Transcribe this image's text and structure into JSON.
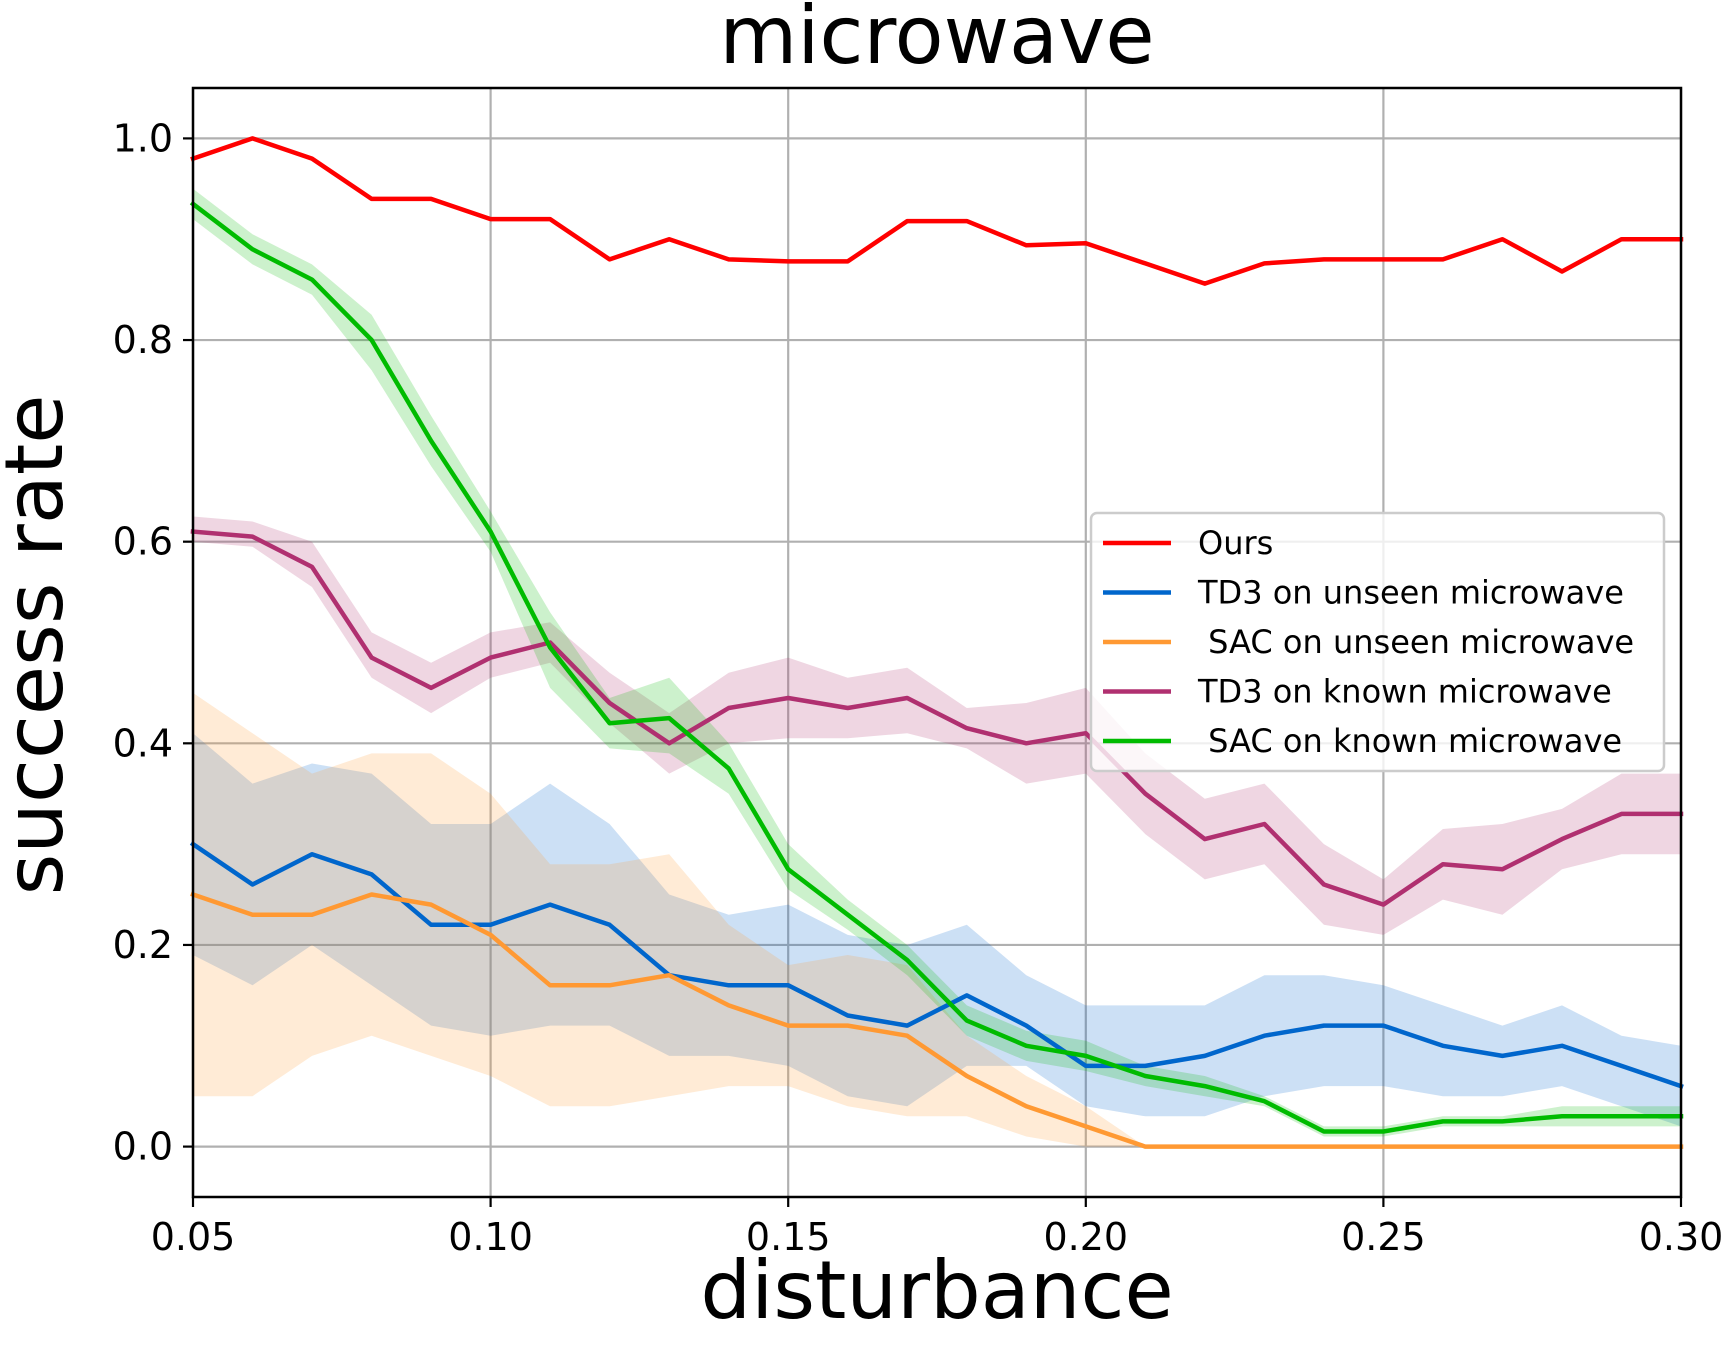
{
  "chart_data": {
    "type": "line",
    "title": "microwave",
    "xlabel": "disturbance",
    "ylabel": "success rate",
    "xlim": [
      0.05,
      0.3
    ],
    "ylim": [
      -0.05,
      1.05
    ],
    "xticks": [
      0.05,
      0.1,
      0.15,
      0.2,
      0.25,
      0.3
    ],
    "xtick_labels": [
      "0.05",
      "0.10",
      "0.15",
      "0.20",
      "0.25",
      "0.30"
    ],
    "yticks": [
      0.0,
      0.2,
      0.4,
      0.6,
      0.8,
      1.0
    ],
    "ytick_labels": [
      "0.0",
      "0.2",
      "0.4",
      "0.6",
      "0.8",
      "1.0"
    ],
    "grid": true,
    "legend_position": "center-right",
    "x": [
      0.05,
      0.06,
      0.07,
      0.08,
      0.09,
      0.1,
      0.11,
      0.12,
      0.13,
      0.14,
      0.15,
      0.16,
      0.17,
      0.18,
      0.19,
      0.2,
      0.21,
      0.22,
      0.23,
      0.24,
      0.25,
      0.26,
      0.27,
      0.28,
      0.29,
      0.3
    ],
    "series": [
      {
        "name": "Ours",
        "color": "#ff0000",
        "values": [
          0.98,
          1.0,
          0.98,
          0.94,
          0.94,
          0.92,
          0.92,
          0.88,
          0.9,
          0.88,
          0.878,
          0.878,
          0.918,
          0.918,
          0.894,
          0.896,
          0.876,
          0.856,
          0.876,
          0.88,
          0.88,
          0.88,
          0.9,
          0.868,
          0.9,
          0.9
        ]
      },
      {
        "name": "TD3 on unseen microwave",
        "color": "#0066cc",
        "values": [
          0.3,
          0.26,
          0.29,
          0.27,
          0.22,
          0.22,
          0.24,
          0.22,
          0.17,
          0.16,
          0.16,
          0.13,
          0.12,
          0.15,
          0.12,
          0.08,
          0.08,
          0.09,
          0.11,
          0.12,
          0.12,
          0.1,
          0.09,
          0.1,
          0.08,
          0.06
        ],
        "lower": [
          0.19,
          0.16,
          0.2,
          0.16,
          0.12,
          0.11,
          0.12,
          0.12,
          0.09,
          0.09,
          0.08,
          0.05,
          0.04,
          0.08,
          0.08,
          0.04,
          0.03,
          0.03,
          0.05,
          0.06,
          0.06,
          0.05,
          0.05,
          0.06,
          0.04,
          0.02
        ],
        "upper": [
          0.41,
          0.36,
          0.38,
          0.37,
          0.32,
          0.32,
          0.36,
          0.32,
          0.25,
          0.23,
          0.24,
          0.21,
          0.2,
          0.22,
          0.17,
          0.14,
          0.14,
          0.14,
          0.17,
          0.17,
          0.16,
          0.14,
          0.12,
          0.14,
          0.11,
          0.1
        ]
      },
      {
        "name": " SAC on unseen microwave",
        "color": "#ff9933",
        "values": [
          0.25,
          0.23,
          0.23,
          0.25,
          0.24,
          0.21,
          0.16,
          0.16,
          0.17,
          0.14,
          0.12,
          0.12,
          0.11,
          0.07,
          0.04,
          0.02,
          0.0,
          0.0,
          0.0,
          0.0,
          0.0,
          0.0,
          0.0,
          0.0,
          0.0,
          0.0
        ],
        "lower": [
          0.05,
          0.05,
          0.09,
          0.11,
          0.09,
          0.07,
          0.04,
          0.04,
          0.05,
          0.06,
          0.06,
          0.04,
          0.03,
          0.03,
          0.01,
          0.0,
          0.0,
          0.0,
          0.0,
          0.0,
          0.0,
          0.0,
          0.0,
          0.0,
          0.0,
          0.0
        ],
        "upper": [
          0.45,
          0.41,
          0.37,
          0.39,
          0.39,
          0.35,
          0.28,
          0.28,
          0.29,
          0.22,
          0.18,
          0.19,
          0.18,
          0.11,
          0.07,
          0.04,
          0.0,
          0.0,
          0.0,
          0.0,
          0.0,
          0.0,
          0.0,
          0.0,
          0.0,
          0.0
        ]
      },
      {
        "name": "TD3 on known microwave",
        "color": "#b03070",
        "values": [
          0.61,
          0.605,
          0.575,
          0.485,
          0.455,
          0.485,
          0.5,
          0.44,
          0.4,
          0.435,
          0.445,
          0.435,
          0.445,
          0.415,
          0.4,
          0.41,
          0.35,
          0.305,
          0.32,
          0.26,
          0.24,
          0.28,
          0.275,
          0.305,
          0.33,
          0.33
        ],
        "lower": [
          0.6,
          0.595,
          0.555,
          0.465,
          0.43,
          0.465,
          0.48,
          0.42,
          0.37,
          0.4,
          0.405,
          0.405,
          0.41,
          0.395,
          0.36,
          0.37,
          0.31,
          0.265,
          0.28,
          0.22,
          0.21,
          0.245,
          0.23,
          0.275,
          0.29,
          0.29
        ],
        "upper": [
          0.625,
          0.62,
          0.6,
          0.51,
          0.48,
          0.51,
          0.52,
          0.47,
          0.43,
          0.47,
          0.485,
          0.465,
          0.475,
          0.435,
          0.44,
          0.455,
          0.39,
          0.345,
          0.36,
          0.3,
          0.265,
          0.315,
          0.32,
          0.335,
          0.37,
          0.37
        ]
      },
      {
        "name": " SAC on known microwave",
        "color": "#00bb00",
        "values": [
          0.935,
          0.89,
          0.86,
          0.8,
          0.7,
          0.61,
          0.495,
          0.42,
          0.425,
          0.375,
          0.275,
          0.23,
          0.185,
          0.125,
          0.1,
          0.09,
          0.07,
          0.06,
          0.045,
          0.015,
          0.015,
          0.025,
          0.025,
          0.03,
          0.03,
          0.03
        ],
        "lower": [
          0.92,
          0.875,
          0.845,
          0.77,
          0.675,
          0.59,
          0.455,
          0.395,
          0.39,
          0.35,
          0.255,
          0.215,
          0.17,
          0.11,
          0.085,
          0.075,
          0.06,
          0.05,
          0.04,
          0.01,
          0.01,
          0.02,
          0.02,
          0.02,
          0.02,
          0.02
        ],
        "upper": [
          0.95,
          0.905,
          0.875,
          0.825,
          0.725,
          0.63,
          0.53,
          0.445,
          0.465,
          0.4,
          0.3,
          0.245,
          0.2,
          0.14,
          0.115,
          0.105,
          0.08,
          0.07,
          0.05,
          0.02,
          0.02,
          0.03,
          0.03,
          0.04,
          0.04,
          0.04
        ]
      }
    ]
  }
}
